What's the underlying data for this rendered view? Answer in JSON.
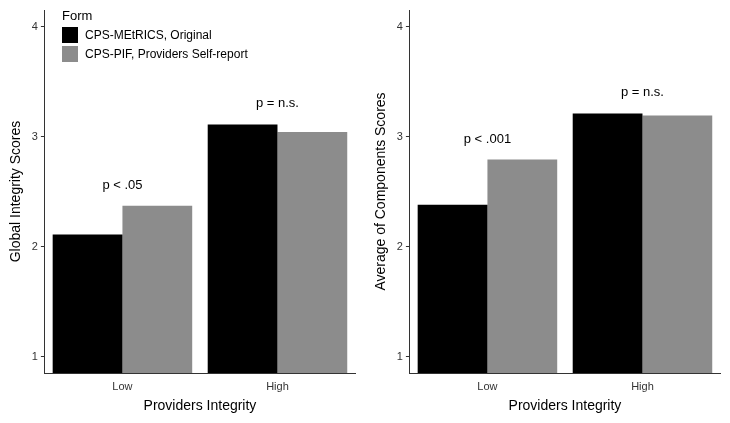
{
  "chart_data": [
    {
      "type": "bar",
      "y_label": "Global Integrity Scores",
      "x_label": "Providers Integrity",
      "categories": [
        "Low",
        "High"
      ],
      "series": [
        {
          "name": "CPS-MEtRICS, Original",
          "color": "#000000",
          "values": [
            2.11,
            3.11
          ]
        },
        {
          "name": "CPS-PIF, Providers Self-report",
          "color": "#8c8c8c",
          "values": [
            2.37,
            3.04
          ]
        }
      ],
      "ylim": [
        0.85,
        4.15
      ],
      "yticks": [
        1,
        2,
        3,
        4
      ],
      "grid": false,
      "legend": "top-left",
      "legend_title": "Form",
      "annotations": [
        {
          "category": "Low",
          "text": "p < .05"
        },
        {
          "category": "High",
          "text": "p = n.s."
        }
      ]
    },
    {
      "type": "bar",
      "y_label": "Average of Components Scores",
      "x_label": "Providers Integrity",
      "categories": [
        "Low",
        "High"
      ],
      "series": [
        {
          "name": "CPS-MEtRICS, Original",
          "color": "#000000",
          "values": [
            2.38,
            3.21
          ]
        },
        {
          "name": "CPS-PIF, Providers Self-report",
          "color": "#8c8c8c",
          "values": [
            2.79,
            3.19
          ]
        }
      ],
      "ylim": [
        0.85,
        4.15
      ],
      "yticks": [
        1,
        2,
        3,
        4
      ],
      "grid": false,
      "annotations": [
        {
          "category": "Low",
          "text": "p < .001"
        },
        {
          "category": "High",
          "text": "p = n.s."
        }
      ]
    }
  ]
}
